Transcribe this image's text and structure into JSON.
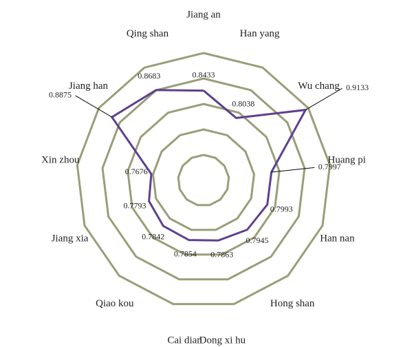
{
  "chart_data": {
    "type": "radar",
    "categories": [
      "Jiang an",
      "Han yang",
      "Wu chang",
      "Huang pi",
      "Han nan",
      "Hong shan",
      "Dong xi hu",
      "Cai dian",
      "Qiao kou",
      "Jiang xia",
      "Xin zhou",
      "Jiang han",
      "Qing shan"
    ],
    "series": [
      {
        "color": "#5e3f8f",
        "values": [
          0.8433,
          0.8038,
          0.9133,
          0.7997,
          0.7993,
          0.7945,
          0.7863,
          0.7854,
          0.7842,
          0.7793,
          0.7676,
          0.8875,
          0.8683
        ]
      }
    ],
    "ylim": [
      0.66,
      0.92
    ],
    "yticks": [
      0.712,
      0.764,
      0.816,
      0.868,
      0.92
    ],
    "grid_color": "#9a9d78"
  }
}
